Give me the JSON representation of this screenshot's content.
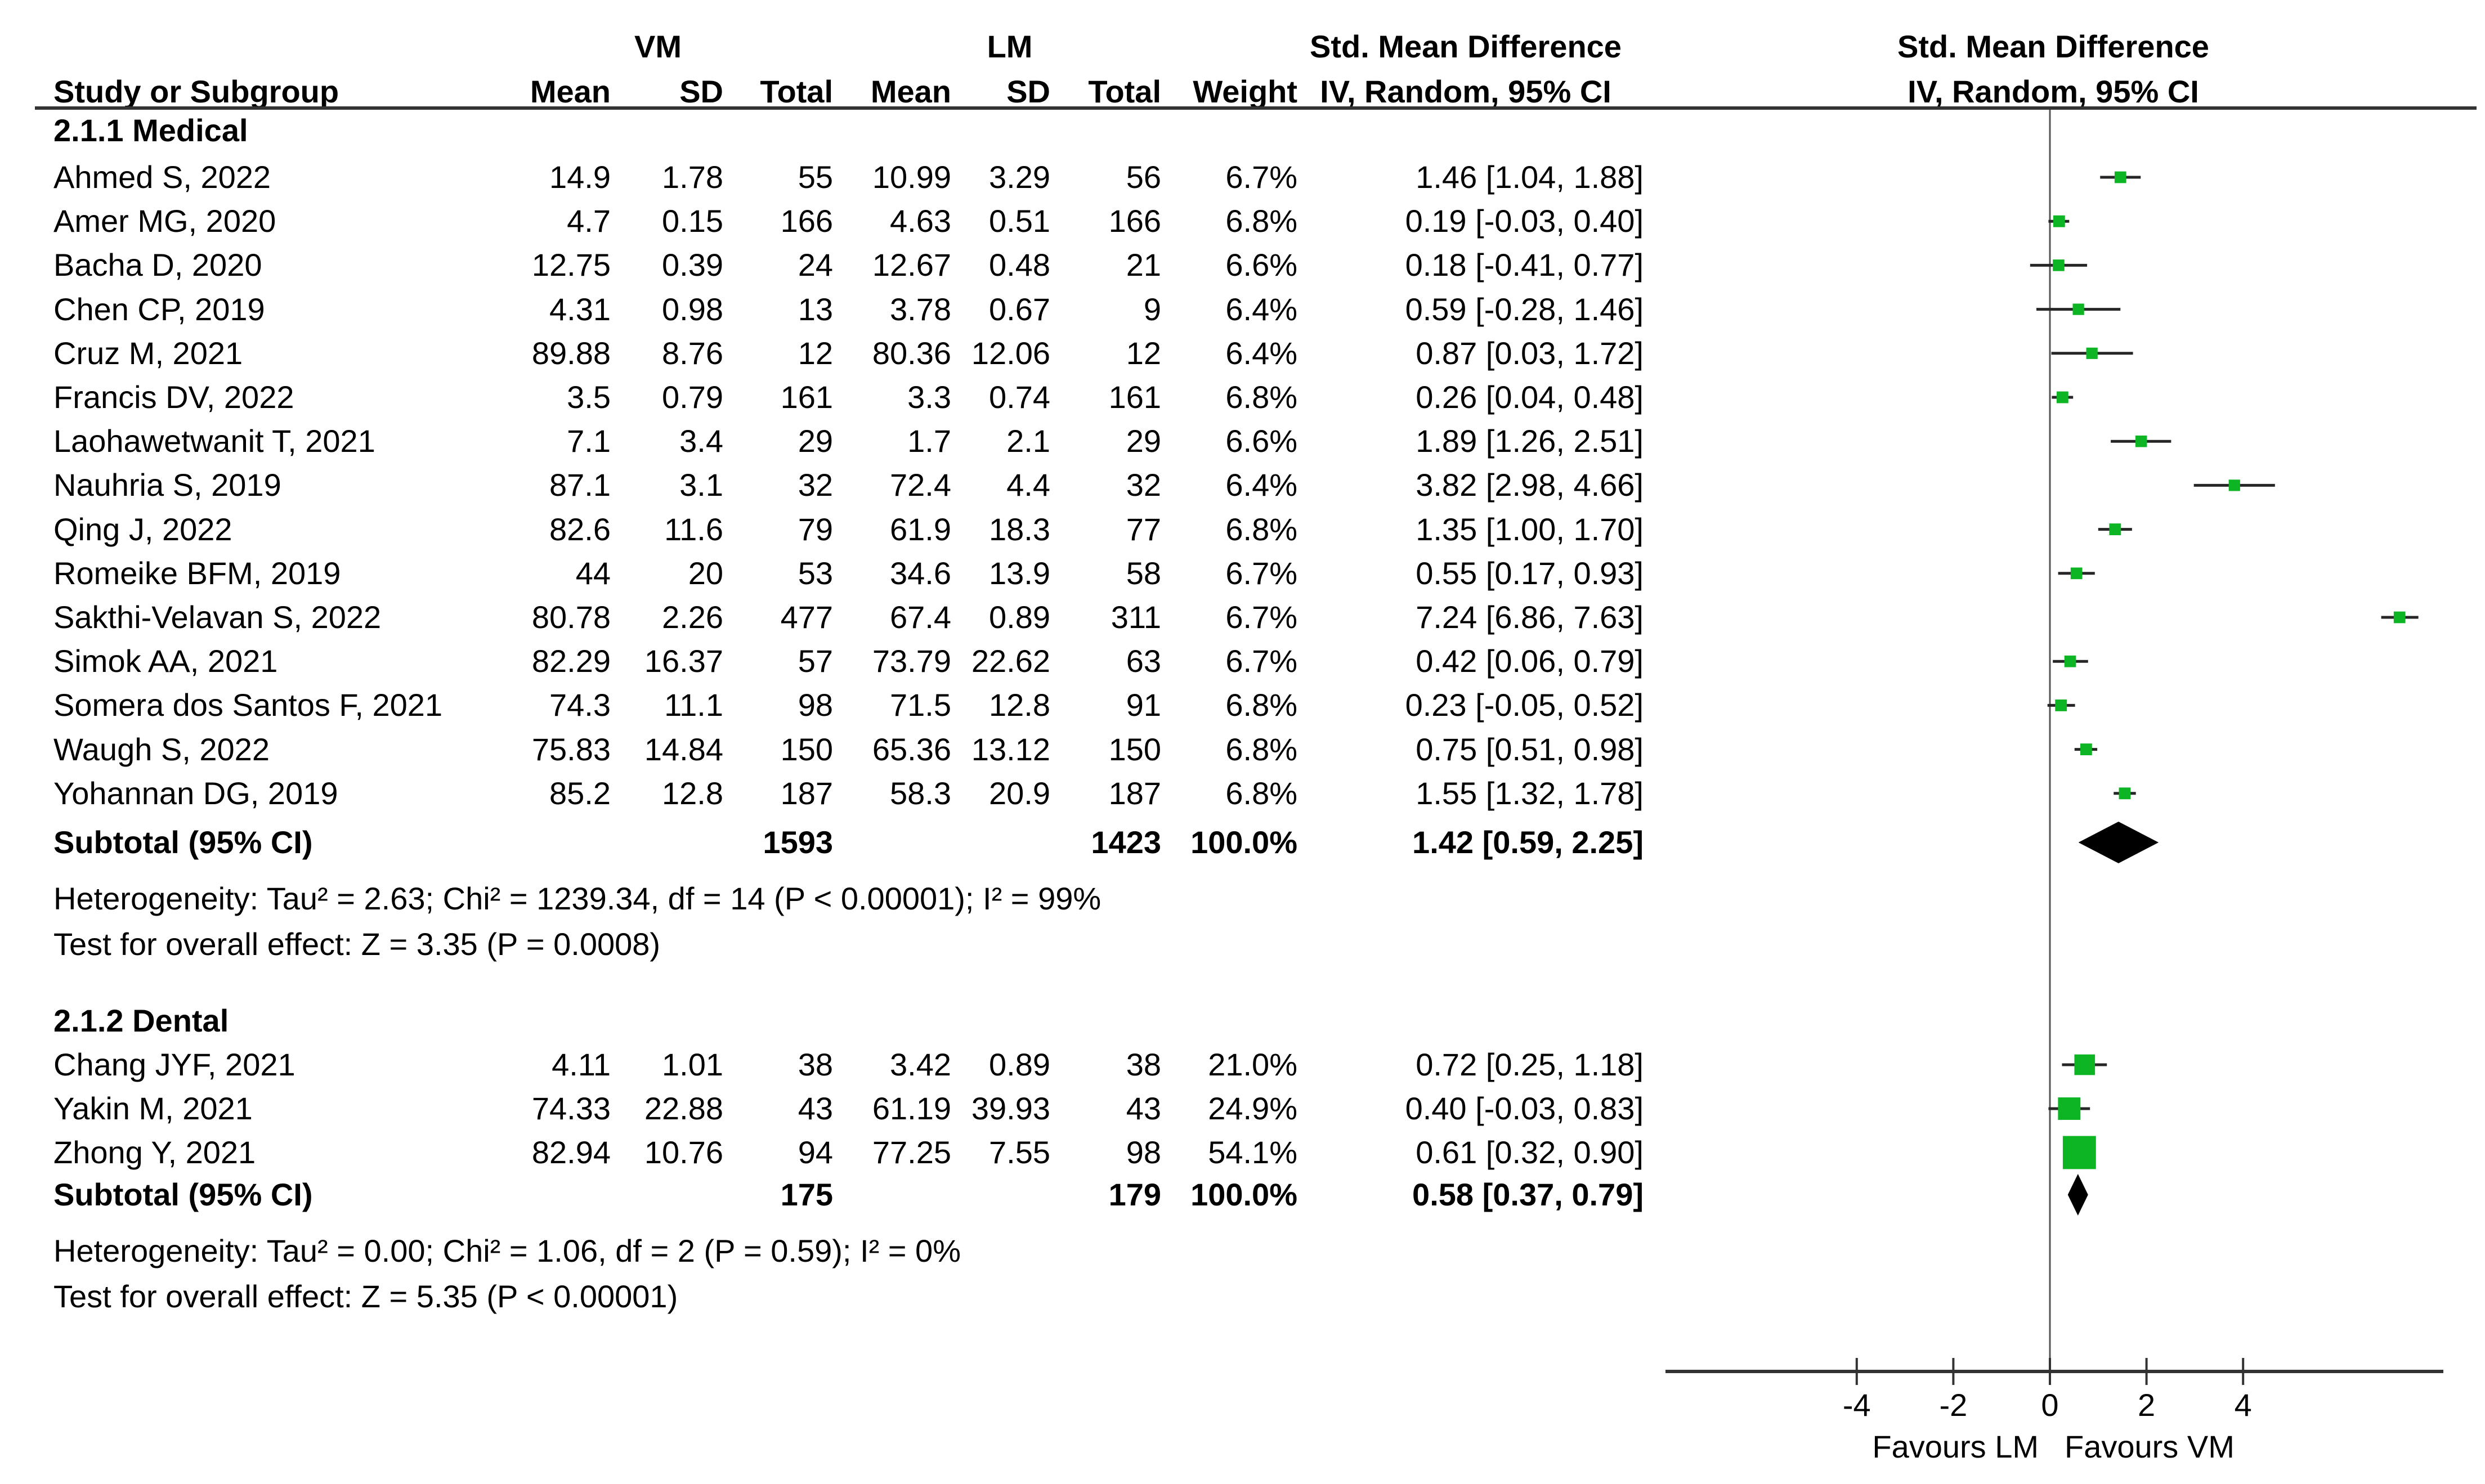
{
  "header": {
    "group1": "VM",
    "group2": "LM",
    "col_study": "Study or Subgroup",
    "col_mean": "Mean",
    "col_sd": "SD",
    "col_total": "Total",
    "col_weight": "Weight",
    "smd_title": "Std. Mean Difference",
    "smd_subtitle": "IV, Random, 95% CI",
    "plot_title": "Std. Mean Difference",
    "plot_subtitle": "IV, Random, 95% CI"
  },
  "colors": {
    "marker_green": "#0db424",
    "diamond_black": "#000000",
    "ci_line": "#262626",
    "axis_line": "#333333",
    "zero_line": "#555555"
  },
  "chart_data": {
    "type": "forest",
    "effect_measure": "Std. Mean Difference",
    "model": "IV, Random, 95% CI",
    "axis": {
      "min": -8,
      "max": 8,
      "ticks": [
        -4,
        -2,
        0,
        2,
        4
      ],
      "favours_left": "Favours LM",
      "favours_right": "Favours VM"
    },
    "subgroups": [
      {
        "label": "2.1.1 Medical",
        "studies": [
          {
            "name": "Ahmed S, 2022",
            "mean1": "14.9",
            "sd1": "1.78",
            "n1": "55",
            "mean2": "10.99",
            "sd2": "3.29",
            "n2": "56",
            "weight": "6.7%",
            "w": 6.7,
            "est": 1.46,
            "lo": 1.04,
            "hi": 1.88,
            "ci_text": "1.46 [1.04, 1.88]"
          },
          {
            "name": "Amer MG, 2020",
            "mean1": "4.7",
            "sd1": "0.15",
            "n1": "166",
            "mean2": "4.63",
            "sd2": "0.51",
            "n2": "166",
            "weight": "6.8%",
            "w": 6.8,
            "est": 0.19,
            "lo": -0.03,
            "hi": 0.4,
            "ci_text": "0.19 [-0.03, 0.40]"
          },
          {
            "name": "Bacha D, 2020",
            "mean1": "12.75",
            "sd1": "0.39",
            "n1": "24",
            "mean2": "12.67",
            "sd2": "0.48",
            "n2": "21",
            "weight": "6.6%",
            "w": 6.6,
            "est": 0.18,
            "lo": -0.41,
            "hi": 0.77,
            "ci_text": "0.18 [-0.41, 0.77]"
          },
          {
            "name": "Chen CP, 2019",
            "mean1": "4.31",
            "sd1": "0.98",
            "n1": "13",
            "mean2": "3.78",
            "sd2": "0.67",
            "n2": "9",
            "weight": "6.4%",
            "w": 6.4,
            "est": 0.59,
            "lo": -0.28,
            "hi": 1.46,
            "ci_text": "0.59 [-0.28, 1.46]"
          },
          {
            "name": "Cruz M, 2021",
            "mean1": "89.88",
            "sd1": "8.76",
            "n1": "12",
            "mean2": "80.36",
            "sd2": "12.06",
            "n2": "12",
            "weight": "6.4%",
            "w": 6.4,
            "est": 0.87,
            "lo": 0.03,
            "hi": 1.72,
            "ci_text": "0.87 [0.03, 1.72]"
          },
          {
            "name": "Francis DV, 2022",
            "mean1": "3.5",
            "sd1": "0.79",
            "n1": "161",
            "mean2": "3.3",
            "sd2": "0.74",
            "n2": "161",
            "weight": "6.8%",
            "w": 6.8,
            "est": 0.26,
            "lo": 0.04,
            "hi": 0.48,
            "ci_text": "0.26 [0.04, 0.48]"
          },
          {
            "name": "Laohawetwanit T, 2021",
            "mean1": "7.1",
            "sd1": "3.4",
            "n1": "29",
            "mean2": "1.7",
            "sd2": "2.1",
            "n2": "29",
            "weight": "6.6%",
            "w": 6.6,
            "est": 1.89,
            "lo": 1.26,
            "hi": 2.51,
            "ci_text": "1.89 [1.26, 2.51]"
          },
          {
            "name": "Nauhria S, 2019",
            "mean1": "87.1",
            "sd1": "3.1",
            "n1": "32",
            "mean2": "72.4",
            "sd2": "4.4",
            "n2": "32",
            "weight": "6.4%",
            "w": 6.4,
            "est": 3.82,
            "lo": 2.98,
            "hi": 4.66,
            "ci_text": "3.82 [2.98, 4.66]"
          },
          {
            "name": "Qing J, 2022",
            "mean1": "82.6",
            "sd1": "11.6",
            "n1": "79",
            "mean2": "61.9",
            "sd2": "18.3",
            "n2": "77",
            "weight": "6.8%",
            "w": 6.8,
            "est": 1.35,
            "lo": 1.0,
            "hi": 1.7,
            "ci_text": "1.35 [1.00, 1.70]"
          },
          {
            "name": "Romeike BFM, 2019",
            "mean1": "44",
            "sd1": "20",
            "n1": "53",
            "mean2": "34.6",
            "sd2": "13.9",
            "n2": "58",
            "weight": "6.7%",
            "w": 6.7,
            "est": 0.55,
            "lo": 0.17,
            "hi": 0.93,
            "ci_text": "0.55 [0.17, 0.93]"
          },
          {
            "name": "Sakthi-Velavan S, 2022",
            "mean1": "80.78",
            "sd1": "2.26",
            "n1": "477",
            "mean2": "67.4",
            "sd2": "0.89",
            "n2": "311",
            "weight": "6.7%",
            "w": 6.7,
            "est": 7.24,
            "lo": 6.86,
            "hi": 7.63,
            "ci_text": "7.24 [6.86, 7.63]"
          },
          {
            "name": "Simok AA, 2021",
            "mean1": "82.29",
            "sd1": "16.37",
            "n1": "57",
            "mean2": "73.79",
            "sd2": "22.62",
            "n2": "63",
            "weight": "6.7%",
            "w": 6.7,
            "est": 0.42,
            "lo": 0.06,
            "hi": 0.79,
            "ci_text": "0.42 [0.06, 0.79]"
          },
          {
            "name": "Somera dos Santos F, 2021",
            "mean1": "74.3",
            "sd1": "11.1",
            "n1": "98",
            "mean2": "71.5",
            "sd2": "12.8",
            "n2": "91",
            "weight": "6.8%",
            "w": 6.8,
            "est": 0.23,
            "lo": -0.05,
            "hi": 0.52,
            "ci_text": "0.23 [-0.05, 0.52]"
          },
          {
            "name": "Waugh S, 2022",
            "mean1": "75.83",
            "sd1": "14.84",
            "n1": "150",
            "mean2": "65.36",
            "sd2": "13.12",
            "n2": "150",
            "weight": "6.8%",
            "w": 6.8,
            "est": 0.75,
            "lo": 0.51,
            "hi": 0.98,
            "ci_text": "0.75 [0.51, 0.98]"
          },
          {
            "name": "Yohannan DG, 2019",
            "mean1": "85.2",
            "sd1": "12.8",
            "n1": "187",
            "mean2": "58.3",
            "sd2": "20.9",
            "n2": "187",
            "weight": "6.8%",
            "w": 6.8,
            "est": 1.55,
            "lo": 1.32,
            "hi": 1.78,
            "ci_text": "1.55 [1.32, 1.78]"
          }
        ],
        "subtotal": {
          "label": "Subtotal (95% CI)",
          "n1": "1593",
          "n2": "1423",
          "weight": "100.0%",
          "est": 1.42,
          "lo": 0.59,
          "hi": 2.25,
          "ci_text": "1.42 [0.59, 2.25]"
        },
        "heterogeneity": "Heterogeneity: Tau² = 2.63; Chi² = 1239.34, df = 14 (P < 0.00001); I² = 99%",
        "overall_effect": "Test for overall effect: Z = 3.35 (P = 0.0008)"
      },
      {
        "label": "2.1.2 Dental",
        "studies": [
          {
            "name": "Chang JYF, 2021",
            "mean1": "4.11",
            "sd1": "1.01",
            "n1": "38",
            "mean2": "3.42",
            "sd2": "0.89",
            "n2": "38",
            "weight": "21.0%",
            "w": 21.0,
            "est": 0.72,
            "lo": 0.25,
            "hi": 1.18,
            "ci_text": "0.72 [0.25, 1.18]"
          },
          {
            "name": "Yakin M, 2021",
            "mean1": "74.33",
            "sd1": "22.88",
            "n1": "43",
            "mean2": "61.19",
            "sd2": "39.93",
            "n2": "43",
            "weight": "24.9%",
            "w": 24.9,
            "est": 0.4,
            "lo": -0.03,
            "hi": 0.83,
            "ci_text": "0.40 [-0.03, 0.83]"
          },
          {
            "name": "Zhong Y, 2021",
            "mean1": "82.94",
            "sd1": "10.76",
            "n1": "94",
            "mean2": "77.25",
            "sd2": "7.55",
            "n2": "98",
            "weight": "54.1%",
            "w": 54.1,
            "est": 0.61,
            "lo": 0.32,
            "hi": 0.9,
            "ci_text": "0.61 [0.32, 0.90]"
          }
        ],
        "subtotal": {
          "label": "Subtotal (95% CI)",
          "n1": "175",
          "n2": "179",
          "weight": "100.0%",
          "est": 0.58,
          "lo": 0.37,
          "hi": 0.79,
          "ci_text": "0.58 [0.37, 0.79]"
        },
        "heterogeneity": "Heterogeneity: Tau² = 0.00; Chi² = 1.06, df = 2 (P = 0.59); I² = 0%",
        "overall_effect": "Test for overall effect: Z = 5.35 (P < 0.00001)"
      }
    ]
  }
}
